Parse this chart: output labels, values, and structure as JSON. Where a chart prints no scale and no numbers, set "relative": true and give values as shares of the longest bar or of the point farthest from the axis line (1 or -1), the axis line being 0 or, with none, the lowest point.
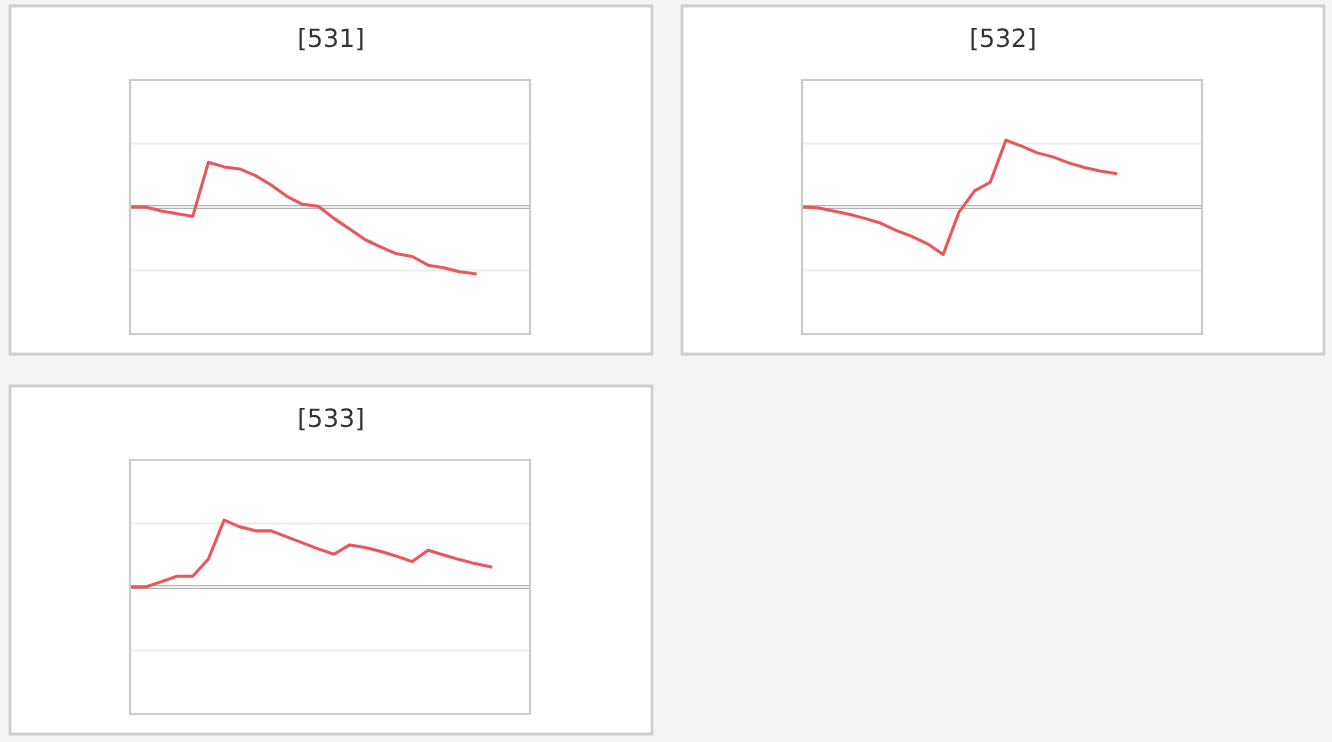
{
  "chart_data": [
    {
      "type": "line",
      "title": "[531]",
      "relative": true,
      "grid": "y",
      "color": "#e8575a",
      "categories": [
        null,
        null,
        null,
        null,
        null,
        null,
        null,
        null,
        null,
        null,
        null,
        null,
        null,
        null,
        null,
        null,
        null,
        null,
        null,
        null,
        null,
        null,
        null,
        null
      ],
      "values": [
        0,
        0,
        -0.06,
        -0.1,
        -0.14,
        0.67,
        0.6,
        0.57,
        0.47,
        0.33,
        0.16,
        0.04,
        0.01,
        -0.17,
        -0.33,
        -0.49,
        -0.6,
        -0.7,
        -0.74,
        -0.87,
        -0.91,
        -0.97,
        -1.0,
        null
      ]
    },
    {
      "type": "line",
      "title": "[532]",
      "relative": true,
      "grid": "y",
      "color": "#e8575a",
      "categories": [
        null,
        null,
        null,
        null,
        null,
        null,
        null,
        null,
        null,
        null,
        null,
        null,
        null,
        null,
        null,
        null,
        null,
        null,
        null,
        null,
        null,
        null,
        null,
        null
      ],
      "values": [
        0,
        -0.01,
        -0.06,
        -0.11,
        -0.17,
        -0.24,
        -0.35,
        -0.44,
        -0.55,
        -0.71,
        -0.08,
        0.24,
        0.37,
        1.0,
        0.91,
        0.81,
        0.75,
        0.66,
        0.59,
        0.54,
        0.5,
        null,
        null,
        null
      ]
    },
    {
      "type": "line",
      "title": "[533]",
      "relative": true,
      "grid": "y",
      "color": "#e8575a",
      "categories": [
        null,
        null,
        null,
        null,
        null,
        null,
        null,
        null,
        null,
        null,
        null,
        null,
        null,
        null,
        null,
        null,
        null,
        null,
        null,
        null,
        null,
        null,
        null,
        null
      ],
      "values": [
        0,
        0,
        0.08,
        0.16,
        0.16,
        0.42,
        1.0,
        0.9,
        0.84,
        0.84,
        0.75,
        0.66,
        0.57,
        0.49,
        0.63,
        0.59,
        0.53,
        0.46,
        0.38,
        0.55,
        0.48,
        0.41,
        0.35,
        0.3
      ]
    }
  ]
}
